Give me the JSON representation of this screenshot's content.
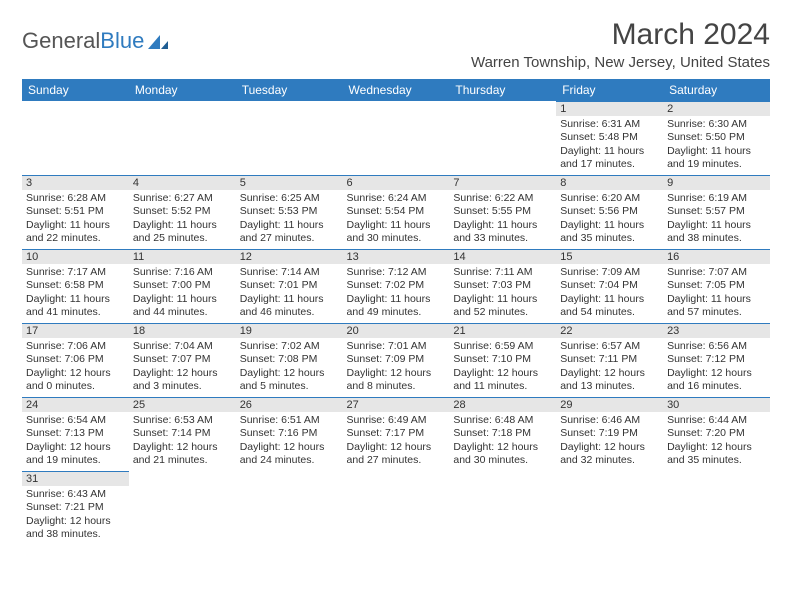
{
  "brand": {
    "part1": "General",
    "part2": "Blue",
    "brand_color": "#2f7bbf",
    "text_color": "#555555"
  },
  "title": "March 2024",
  "location": "Warren Township, New Jersey, United States",
  "style": {
    "header_bg": "#2f7bbf",
    "header_fg": "#ffffff",
    "daynum_bg": "#e6e6e6",
    "cell_border": "#2f7bbf",
    "body_fg": "#333333",
    "page_bg": "#ffffff",
    "title_fontsize": 30,
    "location_fontsize": 15,
    "weekday_fontsize": 12,
    "cell_fontsize": 10.5
  },
  "weekdays": [
    "Sunday",
    "Monday",
    "Tuesday",
    "Wednesday",
    "Thursday",
    "Friday",
    "Saturday"
  ],
  "weeks": [
    [
      {
        "n": "",
        "empty": true
      },
      {
        "n": "",
        "empty": true
      },
      {
        "n": "",
        "empty": true
      },
      {
        "n": "",
        "empty": true
      },
      {
        "n": "",
        "empty": true
      },
      {
        "n": "1",
        "sunrise": "Sunrise: 6:31 AM",
        "sunset": "Sunset: 5:48 PM",
        "day1": "Daylight: 11 hours",
        "day2": "and 17 minutes."
      },
      {
        "n": "2",
        "sunrise": "Sunrise: 6:30 AM",
        "sunset": "Sunset: 5:50 PM",
        "day1": "Daylight: 11 hours",
        "day2": "and 19 minutes."
      }
    ],
    [
      {
        "n": "3",
        "sunrise": "Sunrise: 6:28 AM",
        "sunset": "Sunset: 5:51 PM",
        "day1": "Daylight: 11 hours",
        "day2": "and 22 minutes."
      },
      {
        "n": "4",
        "sunrise": "Sunrise: 6:27 AM",
        "sunset": "Sunset: 5:52 PM",
        "day1": "Daylight: 11 hours",
        "day2": "and 25 minutes."
      },
      {
        "n": "5",
        "sunrise": "Sunrise: 6:25 AM",
        "sunset": "Sunset: 5:53 PM",
        "day1": "Daylight: 11 hours",
        "day2": "and 27 minutes."
      },
      {
        "n": "6",
        "sunrise": "Sunrise: 6:24 AM",
        "sunset": "Sunset: 5:54 PM",
        "day1": "Daylight: 11 hours",
        "day2": "and 30 minutes."
      },
      {
        "n": "7",
        "sunrise": "Sunrise: 6:22 AM",
        "sunset": "Sunset: 5:55 PM",
        "day1": "Daylight: 11 hours",
        "day2": "and 33 minutes."
      },
      {
        "n": "8",
        "sunrise": "Sunrise: 6:20 AM",
        "sunset": "Sunset: 5:56 PM",
        "day1": "Daylight: 11 hours",
        "day2": "and 35 minutes."
      },
      {
        "n": "9",
        "sunrise": "Sunrise: 6:19 AM",
        "sunset": "Sunset: 5:57 PM",
        "day1": "Daylight: 11 hours",
        "day2": "and 38 minutes."
      }
    ],
    [
      {
        "n": "10",
        "sunrise": "Sunrise: 7:17 AM",
        "sunset": "Sunset: 6:58 PM",
        "day1": "Daylight: 11 hours",
        "day2": "and 41 minutes."
      },
      {
        "n": "11",
        "sunrise": "Sunrise: 7:16 AM",
        "sunset": "Sunset: 7:00 PM",
        "day1": "Daylight: 11 hours",
        "day2": "and 44 minutes."
      },
      {
        "n": "12",
        "sunrise": "Sunrise: 7:14 AM",
        "sunset": "Sunset: 7:01 PM",
        "day1": "Daylight: 11 hours",
        "day2": "and 46 minutes."
      },
      {
        "n": "13",
        "sunrise": "Sunrise: 7:12 AM",
        "sunset": "Sunset: 7:02 PM",
        "day1": "Daylight: 11 hours",
        "day2": "and 49 minutes."
      },
      {
        "n": "14",
        "sunrise": "Sunrise: 7:11 AM",
        "sunset": "Sunset: 7:03 PM",
        "day1": "Daylight: 11 hours",
        "day2": "and 52 minutes."
      },
      {
        "n": "15",
        "sunrise": "Sunrise: 7:09 AM",
        "sunset": "Sunset: 7:04 PM",
        "day1": "Daylight: 11 hours",
        "day2": "and 54 minutes."
      },
      {
        "n": "16",
        "sunrise": "Sunrise: 7:07 AM",
        "sunset": "Sunset: 7:05 PM",
        "day1": "Daylight: 11 hours",
        "day2": "and 57 minutes."
      }
    ],
    [
      {
        "n": "17",
        "sunrise": "Sunrise: 7:06 AM",
        "sunset": "Sunset: 7:06 PM",
        "day1": "Daylight: 12 hours",
        "day2": "and 0 minutes."
      },
      {
        "n": "18",
        "sunrise": "Sunrise: 7:04 AM",
        "sunset": "Sunset: 7:07 PM",
        "day1": "Daylight: 12 hours",
        "day2": "and 3 minutes."
      },
      {
        "n": "19",
        "sunrise": "Sunrise: 7:02 AM",
        "sunset": "Sunset: 7:08 PM",
        "day1": "Daylight: 12 hours",
        "day2": "and 5 minutes."
      },
      {
        "n": "20",
        "sunrise": "Sunrise: 7:01 AM",
        "sunset": "Sunset: 7:09 PM",
        "day1": "Daylight: 12 hours",
        "day2": "and 8 minutes."
      },
      {
        "n": "21",
        "sunrise": "Sunrise: 6:59 AM",
        "sunset": "Sunset: 7:10 PM",
        "day1": "Daylight: 12 hours",
        "day2": "and 11 minutes."
      },
      {
        "n": "22",
        "sunrise": "Sunrise: 6:57 AM",
        "sunset": "Sunset: 7:11 PM",
        "day1": "Daylight: 12 hours",
        "day2": "and 13 minutes."
      },
      {
        "n": "23",
        "sunrise": "Sunrise: 6:56 AM",
        "sunset": "Sunset: 7:12 PM",
        "day1": "Daylight: 12 hours",
        "day2": "and 16 minutes."
      }
    ],
    [
      {
        "n": "24",
        "sunrise": "Sunrise: 6:54 AM",
        "sunset": "Sunset: 7:13 PM",
        "day1": "Daylight: 12 hours",
        "day2": "and 19 minutes."
      },
      {
        "n": "25",
        "sunrise": "Sunrise: 6:53 AM",
        "sunset": "Sunset: 7:14 PM",
        "day1": "Daylight: 12 hours",
        "day2": "and 21 minutes."
      },
      {
        "n": "26",
        "sunrise": "Sunrise: 6:51 AM",
        "sunset": "Sunset: 7:16 PM",
        "day1": "Daylight: 12 hours",
        "day2": "and 24 minutes."
      },
      {
        "n": "27",
        "sunrise": "Sunrise: 6:49 AM",
        "sunset": "Sunset: 7:17 PM",
        "day1": "Daylight: 12 hours",
        "day2": "and 27 minutes."
      },
      {
        "n": "28",
        "sunrise": "Sunrise: 6:48 AM",
        "sunset": "Sunset: 7:18 PM",
        "day1": "Daylight: 12 hours",
        "day2": "and 30 minutes."
      },
      {
        "n": "29",
        "sunrise": "Sunrise: 6:46 AM",
        "sunset": "Sunset: 7:19 PM",
        "day1": "Daylight: 12 hours",
        "day2": "and 32 minutes."
      },
      {
        "n": "30",
        "sunrise": "Sunrise: 6:44 AM",
        "sunset": "Sunset: 7:20 PM",
        "day1": "Daylight: 12 hours",
        "day2": "and 35 minutes."
      }
    ],
    [
      {
        "n": "31",
        "sunrise": "Sunrise: 6:43 AM",
        "sunset": "Sunset: 7:21 PM",
        "day1": "Daylight: 12 hours",
        "day2": "and 38 minutes."
      },
      {
        "n": "",
        "empty": true
      },
      {
        "n": "",
        "empty": true
      },
      {
        "n": "",
        "empty": true
      },
      {
        "n": "",
        "empty": true
      },
      {
        "n": "",
        "empty": true
      },
      {
        "n": "",
        "empty": true
      }
    ]
  ]
}
